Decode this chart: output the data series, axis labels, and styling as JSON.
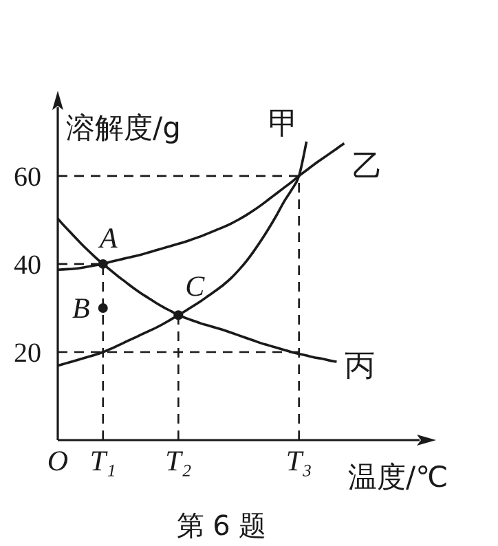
{
  "chart_data": {
    "type": "line",
    "xlabel": "温度/℃",
    "ylabel": "溶解度/g",
    "categories": [
      "O",
      null,
      null,
      null,
      null,
      null,
      "T₁",
      null,
      null,
      null,
      null,
      null,
      null,
      null,
      null,
      null,
      "T₂",
      null,
      null,
      null,
      null,
      null,
      null,
      null,
      null,
      null,
      null,
      null,
      null,
      null,
      null,
      null,
      "T₃",
      null,
      null,
      null,
      null,
      null,
      null,
      null,
      null,
      null,
      null,
      null,
      null,
      null,
      null,
      null,
      null
    ],
    "ylim": [
      0,
      75.6
    ],
    "yticks": [
      20,
      40,
      60
    ],
    "grid": false,
    "series": [
      {
        "name": "甲",
        "color": "#1a1a1a",
        "line_style": "solid",
        "values": [
          16.9,
          17.4,
          17.9,
          18.4,
          18.9,
          19.4,
          20,
          20.7,
          21.5,
          22.3,
          23.1,
          23.9,
          24.7,
          25.5,
          26.4,
          27.4,
          28.4,
          29.4,
          30.5,
          31.6,
          32.8,
          34.0,
          35.3,
          36.8,
          38.6,
          40.6,
          42.9,
          45.4,
          48.1,
          51.0,
          54.1,
          56.8,
          60,
          67.8,
          null,
          null,
          null,
          null,
          null,
          null,
          null,
          null,
          null,
          null,
          null,
          null,
          null,
          null,
          null
        ]
      },
      {
        "name": "乙",
        "color": "#1a1a1a",
        "line_style": "solid",
        "errors": [
          null,
          null,
          null,
          null,
          null,
          null,
          null,
          null,
          null,
          null,
          null,
          null,
          null,
          null,
          null,
          null,
          null,
          null,
          null,
          null,
          null,
          null,
          null,
          null,
          null,
          null,
          null,
          null,
          null,
          null,
          null,
          null,
          [
            0,
            60
          ],
          null,
          null,
          null,
          null,
          null,
          null,
          null,
          null,
          null,
          null,
          null,
          null,
          null,
          null,
          null,
          null
        ],
        "values": [
          38.7,
          38.8,
          38.9,
          39.1,
          39.4,
          39.7,
          40,
          40.5,
          40.9,
          41.3,
          41.7,
          42.1,
          42.6,
          43.1,
          43.6,
          44.1,
          44.6,
          45.1,
          45.7,
          46.3,
          47,
          47.7,
          48.4,
          49.2,
          50.1,
          51.1,
          52.2,
          53.4,
          54.7,
          56,
          57.3,
          58.6,
          60,
          61.3,
          62.6,
          63.8,
          65,
          66.2,
          67.4,
          null,
          null,
          null,
          null,
          null,
          null,
          null,
          null,
          null,
          null
        ]
      },
      {
        "name": "丙",
        "color": "#1a1a1a",
        "line_style": "solid",
        "values": [
          50.3,
          48.4,
          46.6,
          44.8,
          43.1,
          41.5,
          40,
          38.6,
          37.2,
          35.9,
          34.6,
          33.4,
          32.3,
          31.2,
          30.2,
          29.3,
          28.4,
          27.7,
          27.1,
          26.5,
          26,
          25.5,
          25,
          24.4,
          23.8,
          23.2,
          22.6,
          22,
          21.5,
          21,
          20.5,
          20,
          19.6,
          19.2,
          18.8,
          18.5,
          18.1,
          17.8,
          null,
          null,
          null,
          null,
          null,
          null,
          null,
          null,
          null,
          null,
          null
        ]
      },
      {
        "color": "#1a1a1a",
        "line_style": "dashed",
        "values": [
          60,
          60,
          60,
          60,
          60,
          60,
          60,
          60,
          60,
          60,
          60,
          60,
          60,
          60,
          60,
          60,
          60,
          60,
          60,
          60,
          60,
          60,
          60,
          60,
          60,
          60,
          60,
          60,
          60,
          60,
          60,
          60,
          60,
          null,
          null,
          null,
          null,
          null,
          null,
          null,
          null,
          null,
          null,
          null,
          null,
          null,
          null,
          null,
          null
        ]
      },
      {
        "color": "#1a1a1a",
        "line_style": "dashed",
        "values": [
          40,
          40,
          40,
          40,
          40,
          40,
          40,
          null,
          null,
          null,
          null,
          null,
          null,
          null,
          null,
          null,
          null,
          null,
          null,
          null,
          null,
          null,
          null,
          null,
          null,
          null,
          null,
          null,
          null,
          null,
          null,
          null,
          null,
          null,
          null,
          null,
          null,
          null,
          null,
          null,
          null,
          null,
          null,
          null,
          null,
          null,
          null,
          null,
          null
        ]
      },
      {
        "color": "#1a1a1a",
        "line_style": "dashed",
        "values": [
          20,
          20,
          20,
          20,
          20,
          20,
          20,
          20,
          20,
          20,
          20,
          20,
          20,
          20,
          20,
          20,
          20,
          20,
          20,
          20,
          20,
          20,
          20,
          20,
          20,
          20,
          20,
          20,
          20,
          20,
          20,
          20,
          20,
          null,
          null,
          null,
          null,
          null,
          null,
          null,
          null,
          null,
          null,
          null,
          null,
          null,
          null,
          null,
          null
        ]
      },
      {
        "type": "scatter",
        "color": "#1a1a1a",
        "marker": "circle",
        "values": [
          null,
          null,
          null,
          null,
          null,
          null,
          40,
          null,
          null,
          null,
          null,
          null,
          null,
          null,
          null,
          null,
          28.4,
          null,
          null,
          null,
          null,
          null,
          null,
          null,
          null,
          null,
          null,
          null,
          null,
          null,
          null,
          null,
          null,
          null,
          null,
          null,
          null,
          null,
          null,
          null,
          null,
          null,
          null,
          null,
          null,
          null,
          null,
          null,
          null
        ],
        "errors": [
          null,
          null,
          null,
          null,
          null,
          null,
          [
            0,
            40
          ],
          null,
          null,
          null,
          null,
          null,
          null,
          null,
          null,
          null,
          [
            0,
            28.4
          ],
          null,
          null,
          null,
          null,
          null,
          null,
          null,
          null,
          null,
          null,
          null,
          null,
          null,
          null,
          null,
          null,
          null,
          null,
          null,
          null,
          null,
          null,
          null,
          null,
          null,
          null,
          null,
          null,
          null,
          null,
          null,
          null
        ]
      },
      {
        "type": "scatter",
        "color": "#1a1a1a",
        "marker": "circle",
        "values": [
          null,
          null,
          null,
          null,
          null,
          null,
          30,
          null,
          null,
          null,
          null,
          null,
          null,
          null,
          null,
          null,
          null,
          null,
          null,
          null,
          null,
          null,
          null,
          null,
          null,
          null,
          null,
          null,
          null,
          null,
          null,
          null,
          null,
          null,
          null,
          null,
          null,
          null,
          null,
          null,
          null,
          null,
          null,
          null,
          null,
          null,
          null,
          null,
          null
        ]
      }
    ],
    "annotations": [
      {
        "text": "A",
        "y": 40
      },
      "B",
      {
        "text": "C",
        "y": 28.4
      },
      "第 6 题"
    ]
  }
}
